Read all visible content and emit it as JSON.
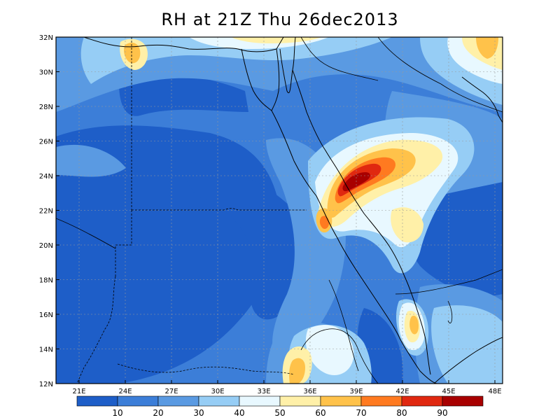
{
  "title": "RH at 21Z Thu 26dec2013",
  "map": {
    "lon_range": [
      19.5,
      48.5
    ],
    "lat_range": [
      12,
      32
    ],
    "lon_ticks": [
      "21E",
      "24E",
      "27E",
      "30E",
      "33E",
      "36E",
      "39E",
      "42E",
      "45E",
      "48E"
    ],
    "lat_ticks": [
      "12N",
      "14N",
      "16N",
      "18N",
      "20N",
      "22N",
      "24N",
      "26N",
      "28N",
      "30N",
      "32N"
    ],
    "grid": "dotted",
    "background": "#2f6fd0"
  },
  "colorbar": {
    "labels": [
      "10",
      "20",
      "30",
      "40",
      "50",
      "60",
      "70",
      "80",
      "90"
    ],
    "colors": [
      "#1e5ec8",
      "#3c7ed8",
      "#5a9ae2",
      "#96cdf5",
      "#e8f8ff",
      "#fff0a8",
      "#ffc24a",
      "#ff7a20",
      "#e02810",
      "#a80000"
    ]
  }
}
